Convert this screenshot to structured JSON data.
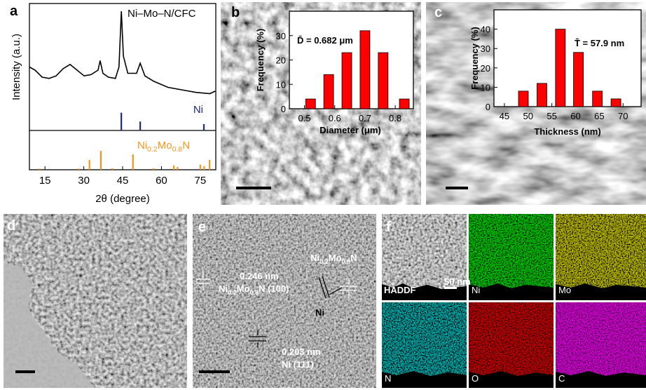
{
  "panel_labels": [
    "a",
    "b",
    "c",
    "d",
    "e",
    "f"
  ],
  "chart_data": [
    {
      "type": "xrd",
      "sample_label": "Ni–Mo–N/CFC",
      "x_label": "2θ (degree)",
      "y_label": "Intensity (a.u.)",
      "xlim": [
        9,
        81
      ],
      "xticks": [
        15,
        30,
        45,
        60,
        75
      ],
      "spectrum": {
        "color": "#000000",
        "ylim": [
          0,
          100
        ],
        "x": [
          9.0,
          11.2,
          13.9,
          16.6,
          19.3,
          22.0,
          24.7,
          27.4,
          30.1,
          32.8,
          35.5,
          36.3,
          37.4,
          39.5,
          42.2,
          43.6,
          44.5,
          45.3,
          47.0,
          50.4,
          51.8,
          53.6,
          57.1,
          62.5,
          67.9,
          73.3,
          78.7,
          80.8
        ],
        "values": [
          50,
          47.5,
          42,
          41,
          43,
          48.6,
          52,
          47.5,
          43,
          44,
          47.5,
          55,
          45,
          42,
          41,
          50,
          94,
          58.6,
          45,
          45,
          53,
          43,
          38.7,
          34,
          32,
          30,
          29,
          31
        ]
      },
      "references": [
        {
          "name": [
            "Ni"
          ],
          "color": "#1f2a7a",
          "ylim": [
            0,
            100
          ],
          "x": [
            44.5,
            51.8,
            76.4
          ],
          "values": [
            14,
            7,
            5
          ]
        },
        {
          "name": [
            "Ni",
            "0.2",
            "Mo",
            "0.8",
            "N"
          ],
          "color": "#f7941d",
          "ylim": [
            0,
            100
          ],
          "x": [
            13.0,
            28.0,
            32.2,
            36.6,
            41.0,
            49.0,
            57.0,
            64.8,
            66.2,
            75.0,
            76.5,
            78.6
          ],
          "values": [
            3,
            3,
            25,
            48,
            4,
            39,
            4,
            11,
            7,
            13,
            9,
            25
          ]
        }
      ]
    },
    {
      "type": "histogram",
      "annotation": "D̄ = 0.682 μm",
      "x_label": "Diameter (μm)",
      "y_label": "Frequency (%)",
      "color": "#ff0000",
      "x": [
        0.52,
        0.58,
        0.64,
        0.7,
        0.76,
        0.83
      ],
      "values": [
        4,
        14,
        23,
        32,
        23,
        4
      ],
      "xlim": [
        0.45,
        0.86
      ],
      "xticks": [
        0.5,
        0.6,
        0.7,
        0.8
      ],
      "ylim": [
        0,
        40
      ],
      "yticks": [
        0,
        10,
        20,
        30
      ]
    },
    {
      "type": "histogram",
      "annotation": "T̄ = 57.9 nm",
      "x_label": "Thickness (nm)",
      "y_label": "Frequency (%)",
      "color": "#ff0000",
      "x": [
        49,
        52.9,
        56.8,
        60.6,
        64.6,
        68.5
      ],
      "values": [
        8,
        12,
        40,
        28,
        8,
        4
      ],
      "xlim": [
        42.8,
        73.8
      ],
      "xticks": [
        45,
        50,
        55,
        60,
        65,
        70
      ],
      "ylim": [
        0,
        50
      ],
      "yticks": [
        0,
        10,
        20,
        30,
        40
      ]
    }
  ],
  "images": {
    "e": {
      "annotations": [
        [
          "0.246 nm"
        ],
        [
          "Ni",
          "0.2",
          "Mo",
          "0.8",
          "N (100)"
        ],
        [
          "Ni",
          "0.2",
          "Mo",
          "0.8",
          "N"
        ],
        [
          "Ni"
        ],
        [
          "0.203 nm"
        ],
        [
          "Ni (111)"
        ]
      ]
    },
    "f": {
      "scale_bar": "50 nm",
      "tiles": [
        "HADDF",
        "Ni",
        "Mo",
        "N",
        "O",
        "C"
      ]
    }
  }
}
